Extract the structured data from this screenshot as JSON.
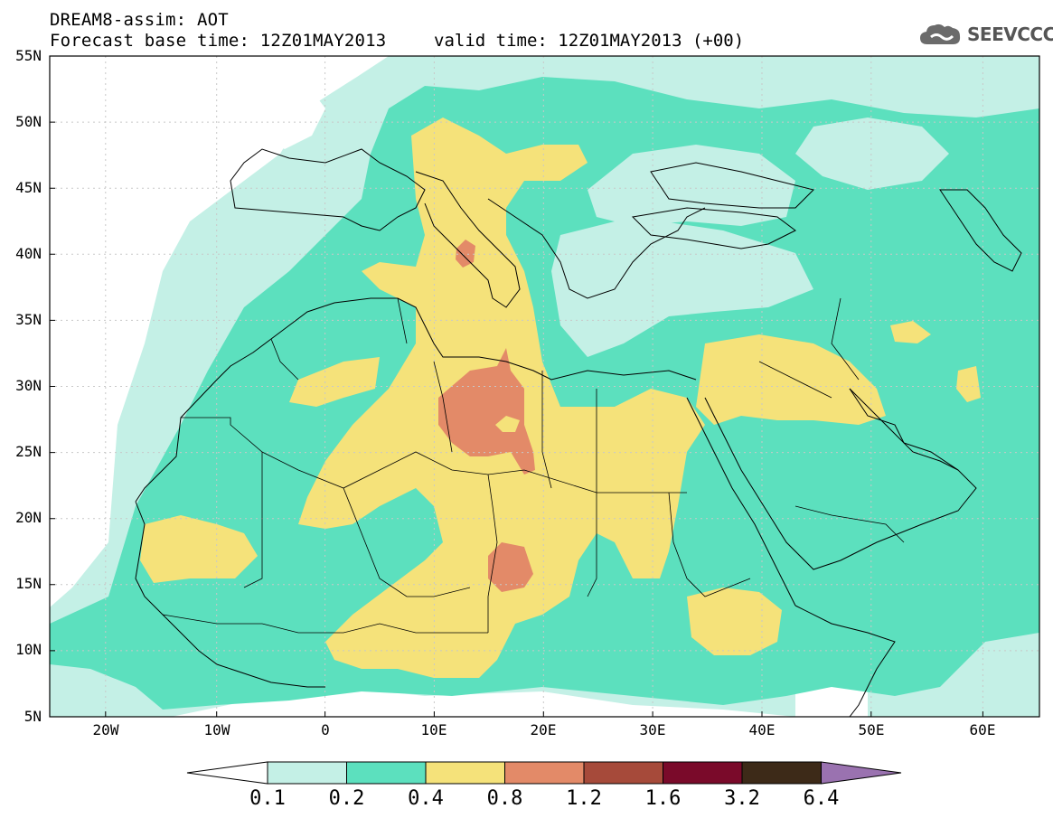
{
  "header": {
    "title": "DREAM8-assim: AOT",
    "base_time": "Forecast base time: 12Z01MAY2013",
    "valid_time": "valid time: 12Z01MAY2013 (+00)"
  },
  "logo": {
    "text": "SEEVCCC",
    "icon": "cloud-icon"
  },
  "map": {
    "lat_labels": [
      "55N",
      "50N",
      "45N",
      "40N",
      "35N",
      "30N",
      "25N",
      "20N",
      "15N",
      "10N",
      "5N"
    ],
    "lon_labels": [
      "20W",
      "10W",
      "0",
      "10E",
      "20E",
      "30E",
      "40E",
      "50E",
      "60E"
    ],
    "colors": {
      "c01": "#c4f0e6",
      "c02": "#5ce0be",
      "c04": "#f5e27a",
      "c08": "#e38a68",
      "c12": "#a64a3a",
      "c16": "#7a0a2a",
      "c32": "#3d2a18",
      "c64": "#9a72b0"
    }
  },
  "colorbar": {
    "labels": [
      "0.1",
      "0.2",
      "0.4",
      "0.8",
      "1.2",
      "1.6",
      "3.2",
      "6.4"
    ],
    "colors": [
      "#ffffff",
      "#c4f0e6",
      "#5ce0be",
      "#f5e27a",
      "#e38a68",
      "#a64a3a",
      "#7a0a2a",
      "#3d2a18",
      "#9a72b0"
    ]
  }
}
